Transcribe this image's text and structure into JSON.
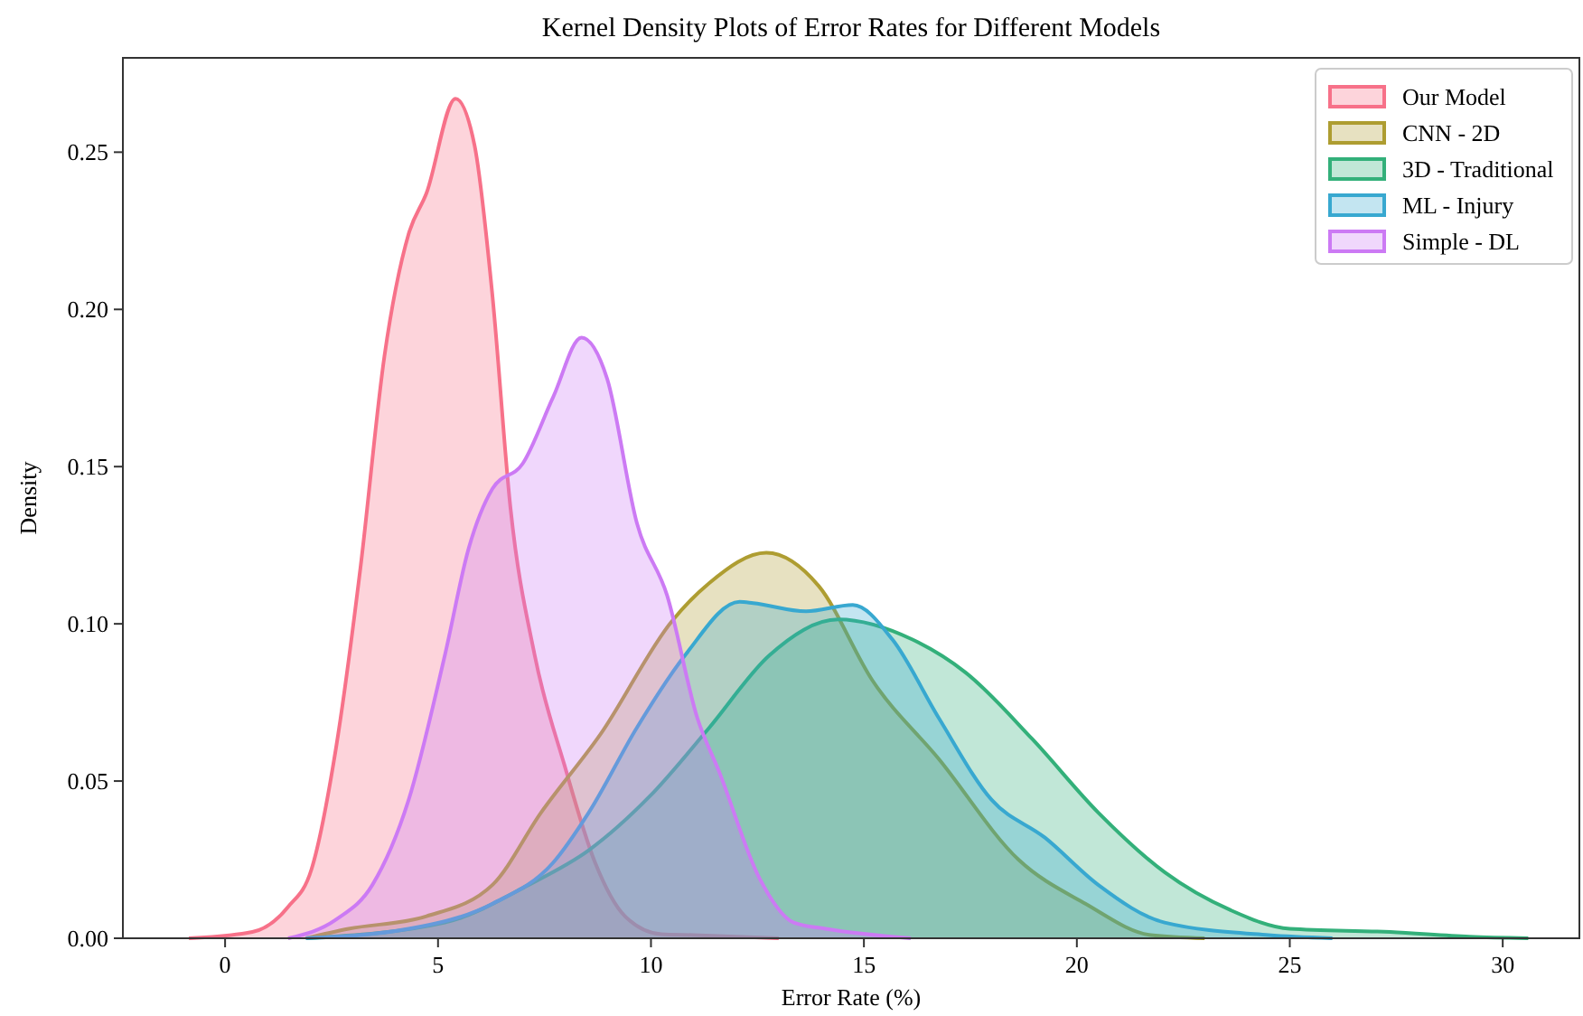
{
  "chart_data": {
    "type": "area",
    "title": "Kernel Density Plots of Error Rates for Different Models",
    "xlabel": "Error Rate (%)",
    "ylabel": "Density",
    "xlim": [
      -2.4,
      31.8
    ],
    "ylim": [
      0,
      0.28
    ],
    "xticks": [
      0,
      5,
      10,
      15,
      20,
      25,
      30
    ],
    "yticks": [
      {
        "value": 0,
        "label": "0.00"
      },
      {
        "value": 0.05,
        "label": "0.05"
      },
      {
        "value": 0.1,
        "label": "0.10"
      },
      {
        "value": 0.15,
        "label": "0.15"
      },
      {
        "value": 0.2,
        "label": "0.20"
      },
      {
        "value": 0.25,
        "label": "0.25"
      }
    ],
    "grid": false,
    "legend": "top right",
    "series": [
      {
        "name": "Our Model",
        "color": "#f77189",
        "x": [
          -0.85,
          0.64,
          1.48,
          2.03,
          2.61,
          3.18,
          3.74,
          4.31,
          4.73,
          5.41,
          5.86,
          6.28,
          6.7,
          7.27,
          7.97,
          8.69,
          9.39,
          10.24,
          11.0,
          13.0
        ],
        "values": [
          0,
          0.002,
          0.01,
          0.022,
          0.061,
          0.118,
          0.185,
          0.224,
          0.237,
          0.267,
          0.252,
          0.204,
          0.137,
          0.09,
          0.055,
          0.024,
          0.007,
          0.0013,
          0.001,
          0
        ]
      },
      {
        "name": "CNN - 2D",
        "color": "#ae9d31",
        "x": [
          1.9,
          2.9,
          4.73,
          6.28,
          7.42,
          8.82,
          10.5,
          11.37,
          12.71,
          13.94,
          15.2,
          16.76,
          18.63,
          20.2,
          21.74,
          23.0
        ],
        "values": [
          0,
          0.003,
          0.007,
          0.017,
          0.04,
          0.065,
          0.101,
          0.113,
          0.1226,
          0.112,
          0.082,
          0.057,
          0.025,
          0.011,
          0.001,
          0
        ]
      },
      {
        "name": "3D - Traditional",
        "color": "#33b07a",
        "x": [
          1.9,
          5.16,
          7.13,
          8.54,
          9.96,
          11.37,
          12.78,
          14.4,
          16.14,
          17.39,
          18.95,
          20.5,
          22.06,
          23.6,
          25.0,
          27.36,
          29.22,
          30.6
        ],
        "values": [
          0,
          0.005,
          0.017,
          0.028,
          0.045,
          0.067,
          0.09,
          0.1014,
          0.095,
          0.0845,
          0.0634,
          0.04,
          0.021,
          0.009,
          0.003,
          0.002,
          0.0005,
          0
        ]
      },
      {
        "name": "ML - Injury",
        "color": "#38a8d0",
        "x": [
          1.9,
          4.31,
          6.28,
          7.7,
          8.54,
          9.67,
          10.8,
          12.08,
          12.4,
          13.64,
          14.74,
          15.67,
          16.76,
          18.0,
          19.25,
          20.5,
          22.06,
          24.5,
          26.0
        ],
        "values": [
          0,
          0.003,
          0.011,
          0.024,
          0.04,
          0.067,
          0.09,
          0.107,
          0.1066,
          0.104,
          0.106,
          0.095,
          0.07,
          0.044,
          0.032,
          0.017,
          0.005,
          0.001,
          0
        ]
      },
      {
        "name": "Simple - DL",
        "color": "#cc7af4",
        "x": [
          1.48,
          2.61,
          3.46,
          4.31,
          5.16,
          5.72,
          6.28,
          6.99,
          7.7,
          8.37,
          8.97,
          9.67,
          10.38,
          11.09,
          11.6,
          12.55,
          13.35,
          14.1,
          16.1
        ],
        "values": [
          0,
          0.006,
          0.017,
          0.044,
          0.09,
          0.124,
          0.143,
          0.151,
          0.172,
          0.191,
          0.178,
          0.132,
          0.109,
          0.07,
          0.053,
          0.019,
          0.005,
          0.003,
          0
        ]
      }
    ]
  }
}
